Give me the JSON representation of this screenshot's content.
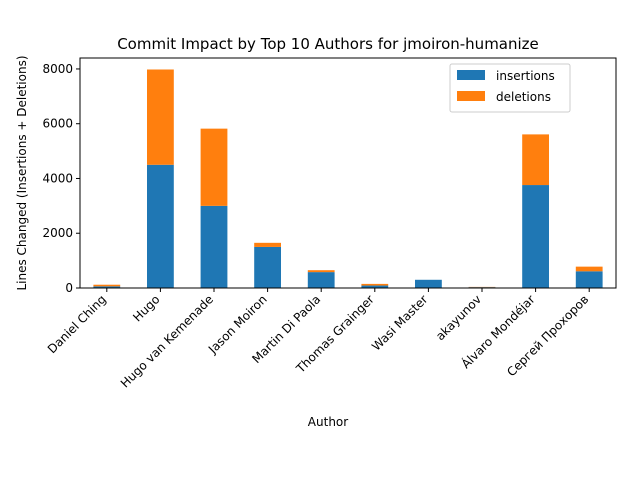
{
  "chart_data": {
    "type": "bar",
    "stacked": true,
    "title": "Commit Impact by Top 10 Authors for jmoiron-humanize",
    "xlabel": "Author",
    "ylabel": "Lines Changed (Insertions + Deletions)",
    "ylim": [
      0,
      8400
    ],
    "yticks": [
      0,
      2000,
      4000,
      6000,
      8000
    ],
    "grid": false,
    "legend_position": "top-right",
    "categories": [
      "Daniel Ching",
      "Hugo",
      "Hugo van Kemenade",
      "Jason Moiron",
      "Martin Di Paola",
      "Thomas Grainger",
      "Wasi Master",
      "akayunov",
      "Álvaro Mondéjar",
      "Сергей Прохоров"
    ],
    "series": [
      {
        "name": "insertions",
        "color": "#1f77b4",
        "values": [
          60,
          4500,
          3000,
          1500,
          580,
          90,
          300,
          30,
          3760,
          610
        ]
      },
      {
        "name": "deletions",
        "color": "#ff7f0e",
        "values": [
          60,
          3480,
          2820,
          150,
          70,
          60,
          0,
          10,
          1850,
          170
        ]
      }
    ]
  }
}
